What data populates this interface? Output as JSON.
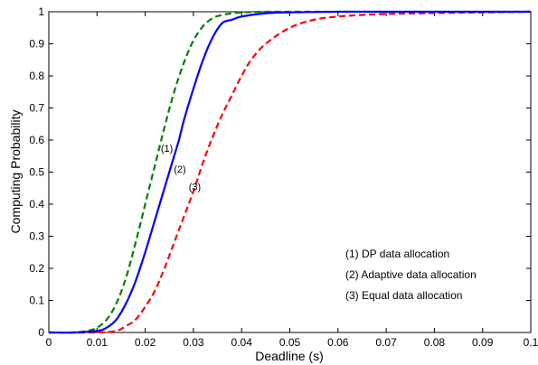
{
  "chart_data": {
    "type": "line",
    "xlabel": "Deadline (s)",
    "ylabel": "Computing Probability",
    "xlim": [
      0,
      0.1
    ],
    "ylim": [
      0,
      1
    ],
    "xticks": [
      "0",
      "0.01",
      "0.02",
      "0.03",
      "0.04",
      "0.05",
      "0.06",
      "0.07",
      "0.08",
      "0.09",
      "0.1"
    ],
    "yticks": [
      "0",
      "0.1",
      "0.2",
      "0.3",
      "0.4",
      "0.5",
      "0.6",
      "0.7",
      "0.8",
      "0.9",
      "1"
    ],
    "grid": false,
    "series": [
      {
        "color": "#0000ff",
        "style": "solid",
        "x": [
          0,
          0.005,
          0.01,
          0.012,
          0.014,
          0.016,
          0.018,
          0.02,
          0.022,
          0.024,
          0.026,
          0.027,
          0.028,
          0.03,
          0.032,
          0.034,
          0.036,
          0.038,
          0.04,
          0.045,
          0.05,
          0.06,
          0.07,
          0.08,
          0.09,
          0.1
        ],
        "y": [
          0,
          0,
          0.005,
          0.015,
          0.04,
          0.09,
          0.16,
          0.25,
          0.35,
          0.45,
          0.55,
          0.6,
          0.66,
          0.76,
          0.85,
          0.92,
          0.965,
          0.975,
          0.985,
          0.995,
          0.998,
          1,
          1,
          1,
          1,
          1
        ]
      },
      {
        "color": "#008000",
        "style": "dashed",
        "x": [
          0,
          0.005,
          0.008,
          0.01,
          0.012,
          0.014,
          0.016,
          0.018,
          0.02,
          0.022,
          0.024,
          0.026,
          0.028,
          0.03,
          0.032,
          0.034,
          0.036,
          0.038,
          0.04,
          0.045,
          0.05,
          0.06,
          0.07,
          0.08,
          0.09,
          0.1
        ],
        "y": [
          0,
          0,
          0.005,
          0.015,
          0.04,
          0.09,
          0.17,
          0.28,
          0.4,
          0.52,
          0.64,
          0.75,
          0.84,
          0.91,
          0.955,
          0.98,
          0.99,
          0.995,
          0.998,
          1,
          1,
          1,
          1,
          1,
          1,
          1
        ]
      },
      {
        "color": "#ff0000",
        "style": "dashed",
        "x": [
          0,
          0.01,
          0.014,
          0.016,
          0.018,
          0.02,
          0.022,
          0.024,
          0.026,
          0.028,
          0.03,
          0.032,
          0.034,
          0.036,
          0.038,
          0.04,
          0.042,
          0.045,
          0.05,
          0.055,
          0.06,
          0.065,
          0.07,
          0.08,
          0.09,
          0.1
        ],
        "y": [
          0,
          0,
          0.005,
          0.02,
          0.04,
          0.08,
          0.13,
          0.2,
          0.28,
          0.36,
          0.44,
          0.53,
          0.61,
          0.68,
          0.74,
          0.8,
          0.85,
          0.9,
          0.95,
          0.975,
          0.985,
          0.99,
          0.993,
          0.996,
          0.998,
          1
        ]
      }
    ],
    "annotations": [
      {
        "text": "(1)",
        "x": 0.0245,
        "y": 0.575
      },
      {
        "text": "(2)",
        "x": 0.0272,
        "y": 0.51
      },
      {
        "text": "(3)",
        "x": 0.0303,
        "y": 0.455
      }
    ],
    "legend_placement": "bottom-right",
    "legend_entries": [
      "(1) DP data allocation",
      "(2) Adaptive data allocation",
      "(3) Equal data allocation"
    ]
  }
}
